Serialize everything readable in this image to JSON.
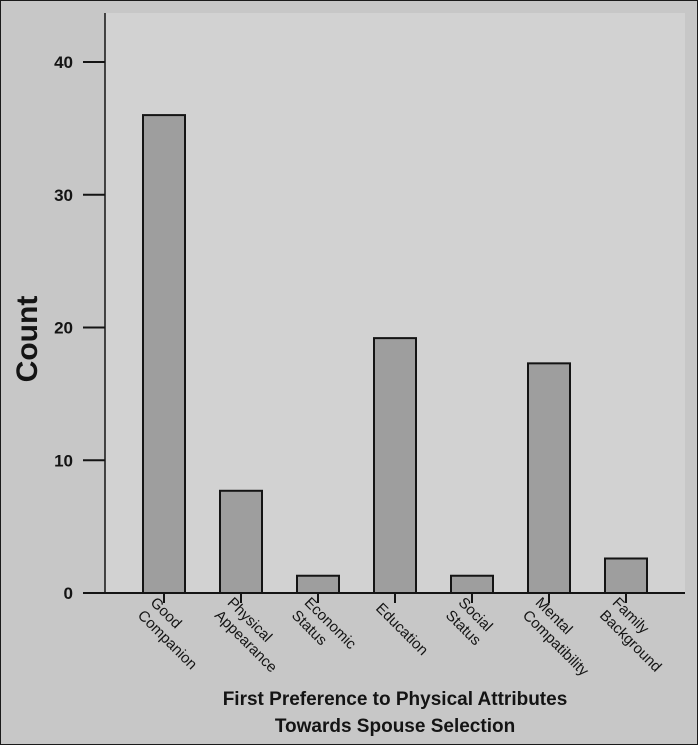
{
  "chart_data": {
    "type": "bar",
    "title": "",
    "xlabel": [
      "First Preference to Physical Attributes",
      "Towards Spouse Selection"
    ],
    "ylabel": "Count",
    "ylim": [
      0,
      43
    ],
    "yticks": [
      0,
      10,
      20,
      30,
      40
    ],
    "categories": [
      [
        "Good",
        "Companion"
      ],
      [
        "Physical",
        "Appearance"
      ],
      [
        "Economic",
        "Status"
      ],
      [
        "Education"
      ],
      [
        "Social",
        "Status"
      ],
      [
        "Mental",
        "Compatibility"
      ],
      [
        "Family",
        "Background"
      ]
    ],
    "values": [
      36,
      7.7,
      1.3,
      19.2,
      1.3,
      17.3,
      2.6
    ],
    "colors": {
      "plot_background": "#d2d2d2",
      "bar_fill": "#9e9e9e",
      "bar_stroke": "#141414",
      "axis": "#141414"
    }
  }
}
